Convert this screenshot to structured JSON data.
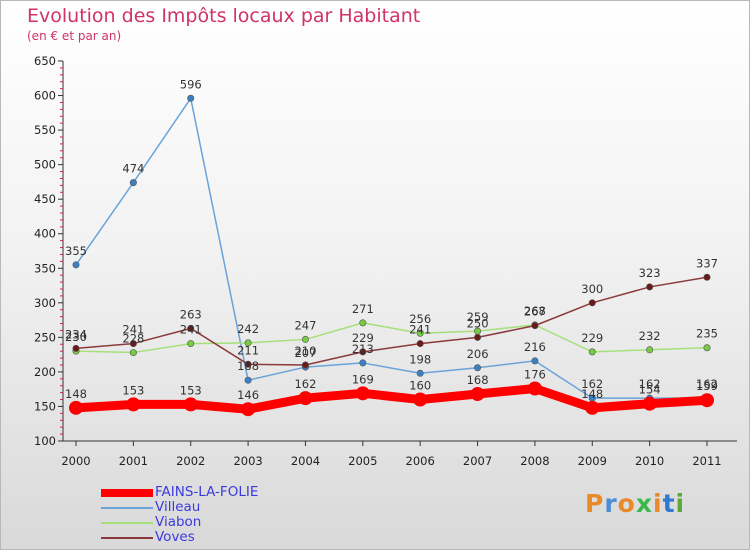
{
  "header": {
    "title": "Evolution des Impôts locaux par Habitant",
    "subtitle": "(en € et par an)"
  },
  "brand": {
    "text": "Proxiti",
    "colors": [
      "#e8892a",
      "#4a8fd6",
      "#e8892a",
      "#3ab84a",
      "#e8892a",
      "#2f7ad1",
      "#5aaa3a"
    ]
  },
  "chart_data": {
    "type": "line",
    "title": "Evolution des Impôts locaux par Habitant",
    "subtitle": "(en € et par an)",
    "x": [
      "2000",
      "2001",
      "2002",
      "2003",
      "2004",
      "2005",
      "2006",
      "2007",
      "2008",
      "2009",
      "2010",
      "2011"
    ],
    "ylim": [
      100,
      650
    ],
    "yticks": [
      100,
      150,
      200,
      250,
      300,
      350,
      400,
      450,
      500,
      550,
      600,
      650
    ],
    "grid": false,
    "legend_position": "bottom-left",
    "series": [
      {
        "name": "FAINS-LA-FOLIE",
        "color": "#ff0000",
        "values": [
          148,
          153,
          153,
          146,
          162,
          169,
          160,
          168,
          176,
          148,
          154,
          159
        ]
      },
      {
        "name": "Villeau",
        "color": "#6aa3d8",
        "marker": "#3d7fc4",
        "values": [
          355,
          474,
          596,
          188,
          207,
          213,
          198,
          206,
          216,
          162,
          162,
          162
        ]
      },
      {
        "name": "Viabon",
        "color": "#a6e07a",
        "marker": "#77cc44",
        "values": [
          230,
          228,
          241,
          242,
          247,
          271,
          256,
          259,
          268,
          229,
          232,
          235
        ]
      },
      {
        "name": "Voves",
        "color": "#8a3a3a",
        "marker": "#6b1a1a",
        "values": [
          234,
          241,
          263,
          211,
          210,
          229,
          241,
          250,
          267,
          300,
          323,
          337
        ]
      }
    ]
  }
}
